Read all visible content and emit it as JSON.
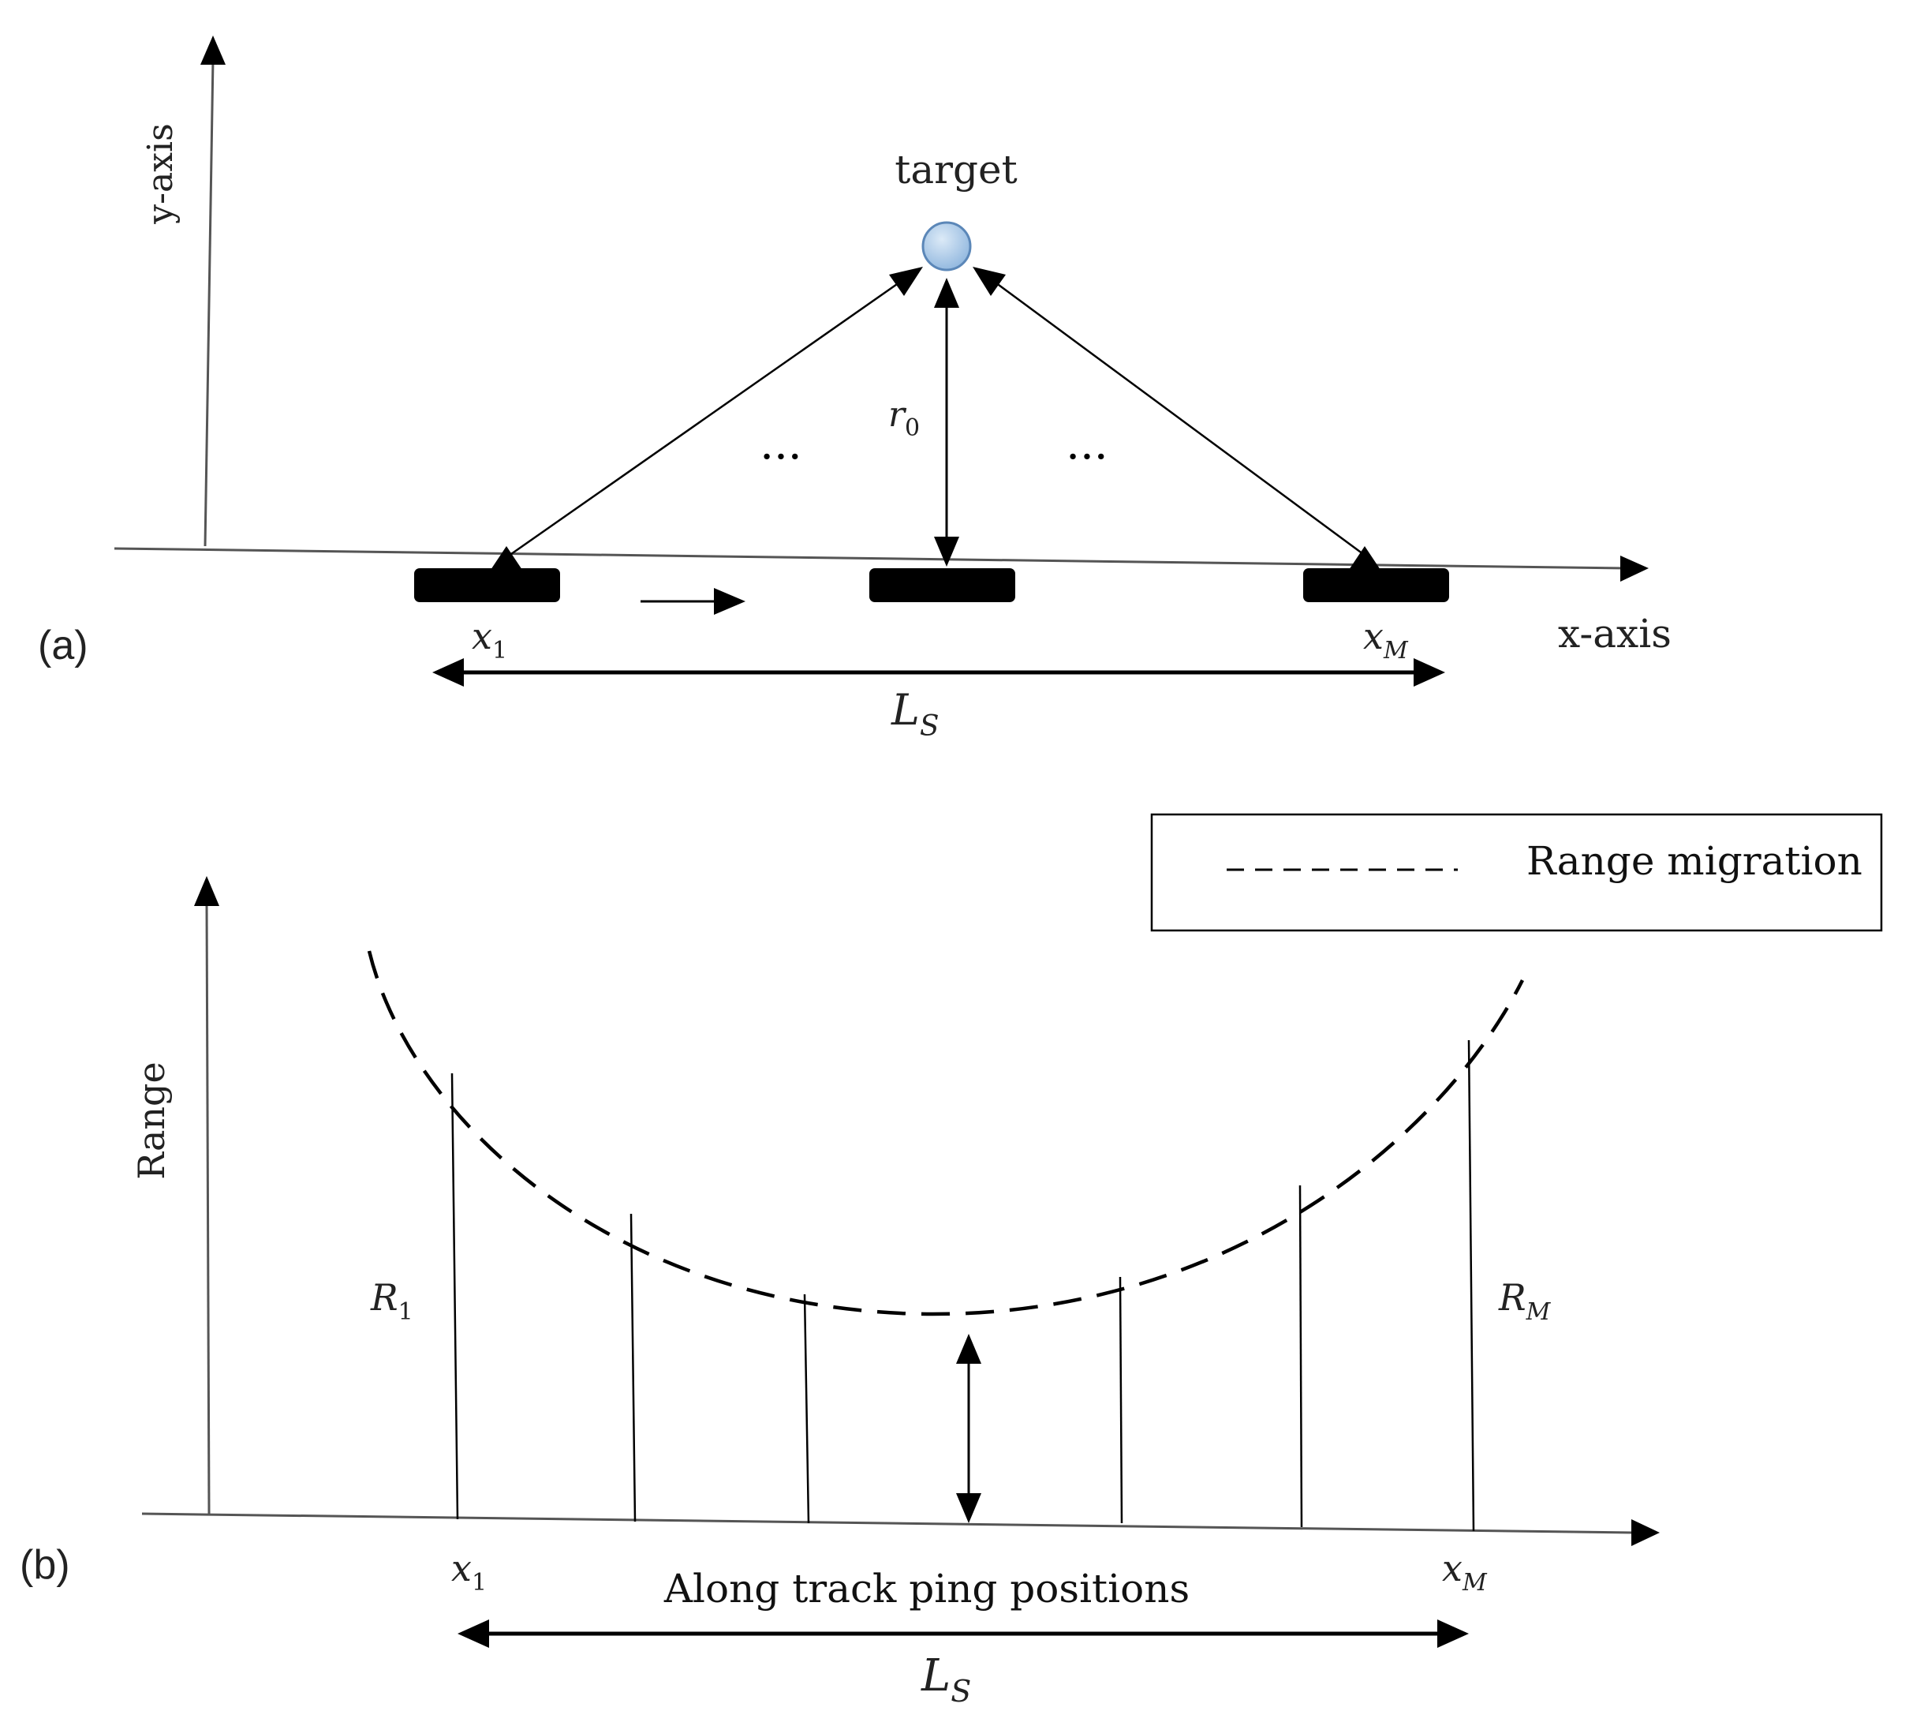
{
  "panel_a": {
    "tag": "(a)",
    "y_axis_label": "y-axis",
    "x_axis_label": "x-axis",
    "target_label": "target",
    "range_label": {
      "base": "r",
      "sub": "0"
    },
    "dots": "···",
    "first_position": {
      "base": "x",
      "sub": "1"
    },
    "last_position": {
      "base": "x",
      "sub": "M"
    },
    "aperture_label": {
      "base": "L",
      "sub": "S"
    },
    "colors": {
      "target_fill": "#a9cbeb",
      "target_stroke": "#5b87b8",
      "line": "#000000",
      "axis": "#555555"
    }
  },
  "panel_b": {
    "tag": "(b)",
    "y_axis_label": "Range",
    "x_axis_label": "Along track ping positions",
    "legend_label": "Range migration",
    "first_range": {
      "base": "R",
      "sub": "1"
    },
    "last_range": {
      "base": "R",
      "sub": "M"
    },
    "first_position": {
      "base": "x",
      "sub": "1"
    },
    "last_position": {
      "base": "x",
      "sub": "M"
    },
    "aperture_label": {
      "base": "L",
      "sub": "S"
    }
  }
}
